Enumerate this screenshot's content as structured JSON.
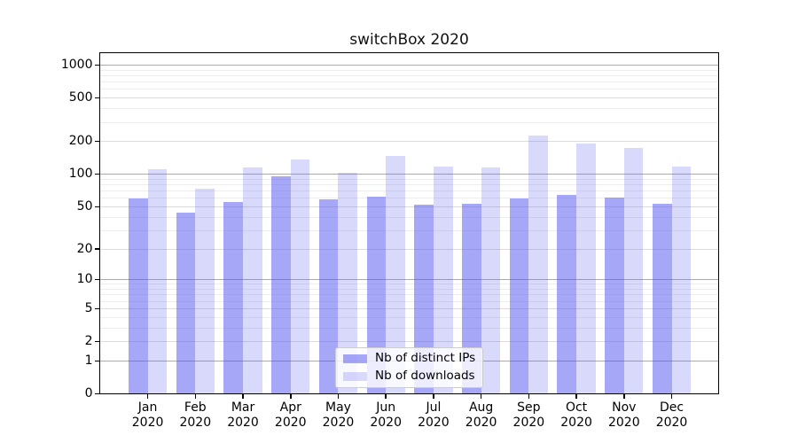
{
  "chart_data": {
    "type": "bar",
    "title": "switchBox 2020",
    "xlabel": "",
    "ylabel": "",
    "yscale": "symlog ln(1+x)",
    "ylim": [
      0,
      1300
    ],
    "yticks": [
      0,
      1,
      2,
      5,
      10,
      20,
      50,
      100,
      200,
      500,
      1000
    ],
    "grid": "horizontal major+minor",
    "legend_position": "lower center",
    "categories": [
      "Jan 2020",
      "Feb 2020",
      "Mar 2020",
      "Apr 2020",
      "May 2020",
      "Jun 2020",
      "Jul 2020",
      "Aug 2020",
      "Sep 2020",
      "Oct 2020",
      "Nov 2020",
      "Dec 2020"
    ],
    "series": [
      {
        "name": "Nb of distinct IPs",
        "color": "rgba(80,80,240,0.5)",
        "values": [
          60,
          44,
          55,
          95,
          59,
          62,
          52,
          53,
          60,
          64,
          61,
          53
        ]
      },
      {
        "name": "Nb of downloads",
        "color": "rgba(80,80,240,0.22)",
        "values": [
          111,
          73,
          115,
          137,
          104,
          148,
          118,
          115,
          228,
          190,
          176,
          118
        ]
      }
    ],
    "colors": {
      "grid_major": "#ababab",
      "grid_mid": "#dcdcdc",
      "grid_minor": "#eeeeee",
      "spine": "#000000",
      "text": "#000000",
      "legend_border": "#cccccc"
    }
  }
}
